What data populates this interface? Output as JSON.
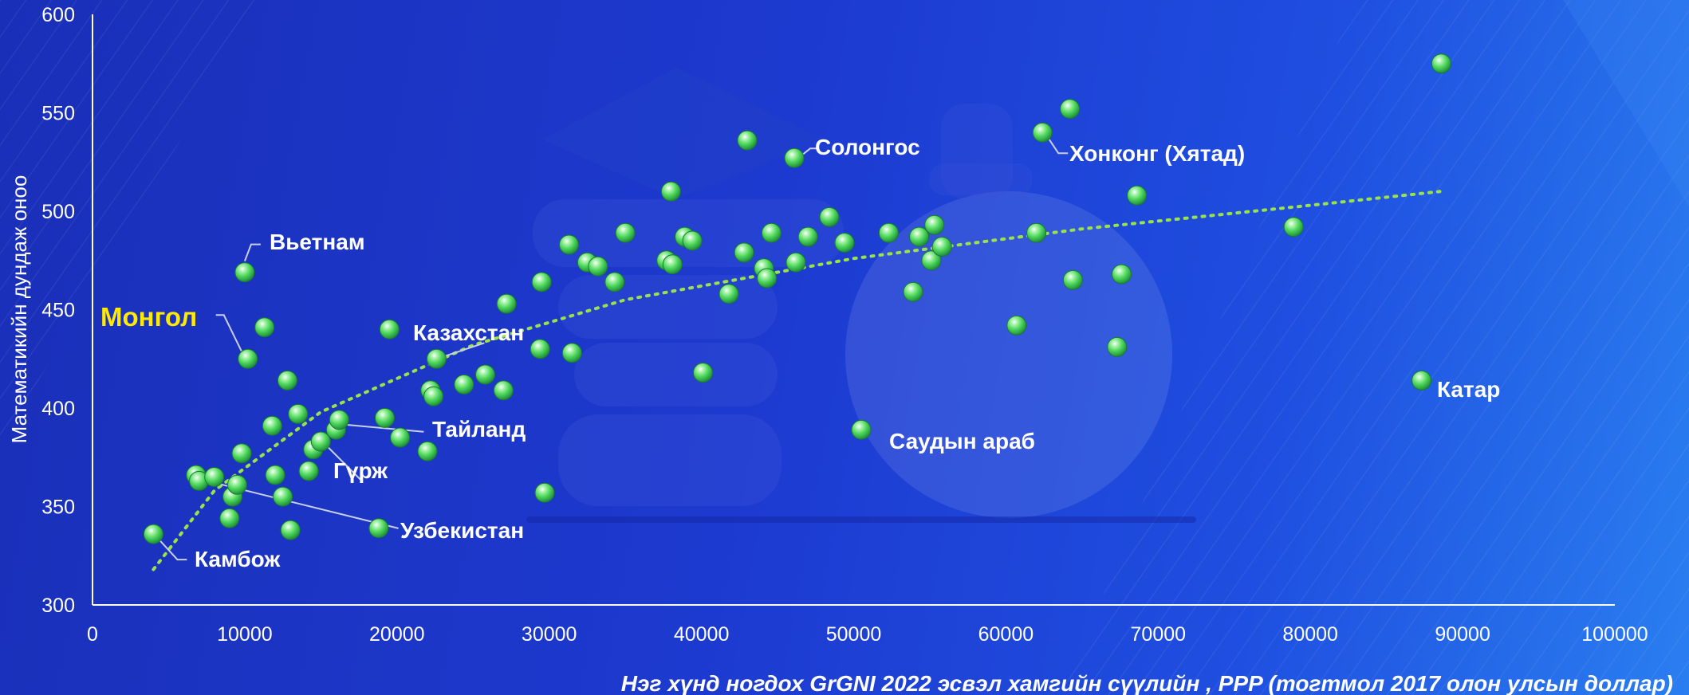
{
  "chart_data": {
    "type": "scatter",
    "xlabel": "Нэг хүнд ногдох GrGNI 2022 эсвэл хамгийн сүүлийн , PPP (тогтмол 2017 олон улсын доллар)",
    "ylabel": "Математикийн дундаж оноо",
    "xlim": [
      0,
      100000
    ],
    "ylim": [
      300,
      600
    ],
    "xticks": [
      "0",
      "10000",
      "20000",
      "30000",
      "40000",
      "50000",
      "60000",
      "70000",
      "80000",
      "90000",
      "100000"
    ],
    "yticks": [
      "300",
      "350",
      "400",
      "450",
      "500",
      "550",
      "600"
    ],
    "grid": false,
    "point_color": "#5ee06a",
    "trend_color": "#9be24a",
    "highlight_color": "#ffea00",
    "trendline": {
      "type": "logarithmic",
      "points": [
        [
          4000,
          318
        ],
        [
          8000,
          358
        ],
        [
          15000,
          398
        ],
        [
          25000,
          432
        ],
        [
          35000,
          455
        ],
        [
          50000,
          476
        ],
        [
          65000,
          491
        ],
        [
          80000,
          503
        ],
        [
          88500,
          510
        ]
      ]
    },
    "points": [
      [
        4000,
        336
      ],
      [
        6800,
        366
      ],
      [
        7000,
        363
      ],
      [
        8000,
        365
      ],
      [
        9000,
        344
      ],
      [
        9200,
        355
      ],
      [
        9500,
        361
      ],
      [
        9800,
        377
      ],
      [
        10000,
        469
      ],
      [
        10200,
        425
      ],
      [
        11300,
        441
      ],
      [
        11800,
        391
      ],
      [
        12000,
        366
      ],
      [
        12500,
        355
      ],
      [
        12800,
        414
      ],
      [
        13000,
        338
      ],
      [
        13500,
        397
      ],
      [
        14200,
        368
      ],
      [
        14500,
        379
      ],
      [
        15000,
        383
      ],
      [
        16000,
        389
      ],
      [
        16200,
        394
      ],
      [
        18800,
        339
      ],
      [
        19200,
        395
      ],
      [
        19500,
        440
      ],
      [
        20200,
        385
      ],
      [
        22000,
        378
      ],
      [
        22200,
        409
      ],
      [
        22400,
        406
      ],
      [
        22600,
        425
      ],
      [
        24400,
        412
      ],
      [
        25800,
        417
      ],
      [
        27000,
        409
      ],
      [
        27200,
        453
      ],
      [
        29400,
        430
      ],
      [
        29500,
        464
      ],
      [
        29700,
        357
      ],
      [
        31300,
        483
      ],
      [
        31500,
        428
      ],
      [
        32500,
        474
      ],
      [
        33200,
        472
      ],
      [
        34300,
        464
      ],
      [
        35000,
        489
      ],
      [
        37700,
        475
      ],
      [
        38000,
        510
      ],
      [
        38100,
        473
      ],
      [
        38900,
        487
      ],
      [
        39400,
        485
      ],
      [
        40100,
        418
      ],
      [
        41800,
        458
      ],
      [
        42800,
        479
      ],
      [
        43000,
        536
      ],
      [
        44100,
        471
      ],
      [
        44300,
        466
      ],
      [
        44600,
        489
      ],
      [
        46100,
        527
      ],
      [
        46200,
        474
      ],
      [
        47000,
        487
      ],
      [
        48400,
        497
      ],
      [
        49400,
        484
      ],
      [
        50500,
        389
      ],
      [
        52300,
        489
      ],
      [
        53900,
        459
      ],
      [
        54300,
        487
      ],
      [
        55100,
        475
      ],
      [
        55300,
        493
      ],
      [
        55800,
        482
      ],
      [
        60700,
        442
      ],
      [
        62000,
        489
      ],
      [
        62400,
        540
      ],
      [
        64200,
        552
      ],
      [
        64400,
        465
      ],
      [
        67300,
        431
      ],
      [
        67600,
        468
      ],
      [
        68600,
        508
      ],
      [
        78900,
        492
      ],
      [
        87300,
        414
      ],
      [
        88600,
        575
      ]
    ],
    "annotations": [
      {
        "label": "Вьетнам",
        "x": 10000,
        "y": 469,
        "highlight": false
      },
      {
        "label": "Монгол",
        "x": 10200,
        "y": 425,
        "highlight": true
      },
      {
        "label": "Казахстан",
        "x": 22600,
        "y": 425,
        "highlight": false
      },
      {
        "label": "Тайланд",
        "x": 16000,
        "y": 392,
        "highlight": false
      },
      {
        "label": "Гүрж",
        "x": 15000,
        "y": 383,
        "highlight": false
      },
      {
        "label": "Узбекистан",
        "x": 7000,
        "y": 364,
        "highlight": false
      },
      {
        "label": "Камбож",
        "x": 4000,
        "y": 336,
        "highlight": false
      },
      {
        "label": "Солонгос",
        "x": 46100,
        "y": 527,
        "highlight": false
      },
      {
        "label": "Хонконг (Хятад)",
        "x": 62400,
        "y": 540,
        "highlight": false
      },
      {
        "label": "Саудын араб",
        "x": 50500,
        "y": 389,
        "highlight": false
      },
      {
        "label": "Катар",
        "x": 87300,
        "y": 414,
        "highlight": false
      }
    ]
  }
}
